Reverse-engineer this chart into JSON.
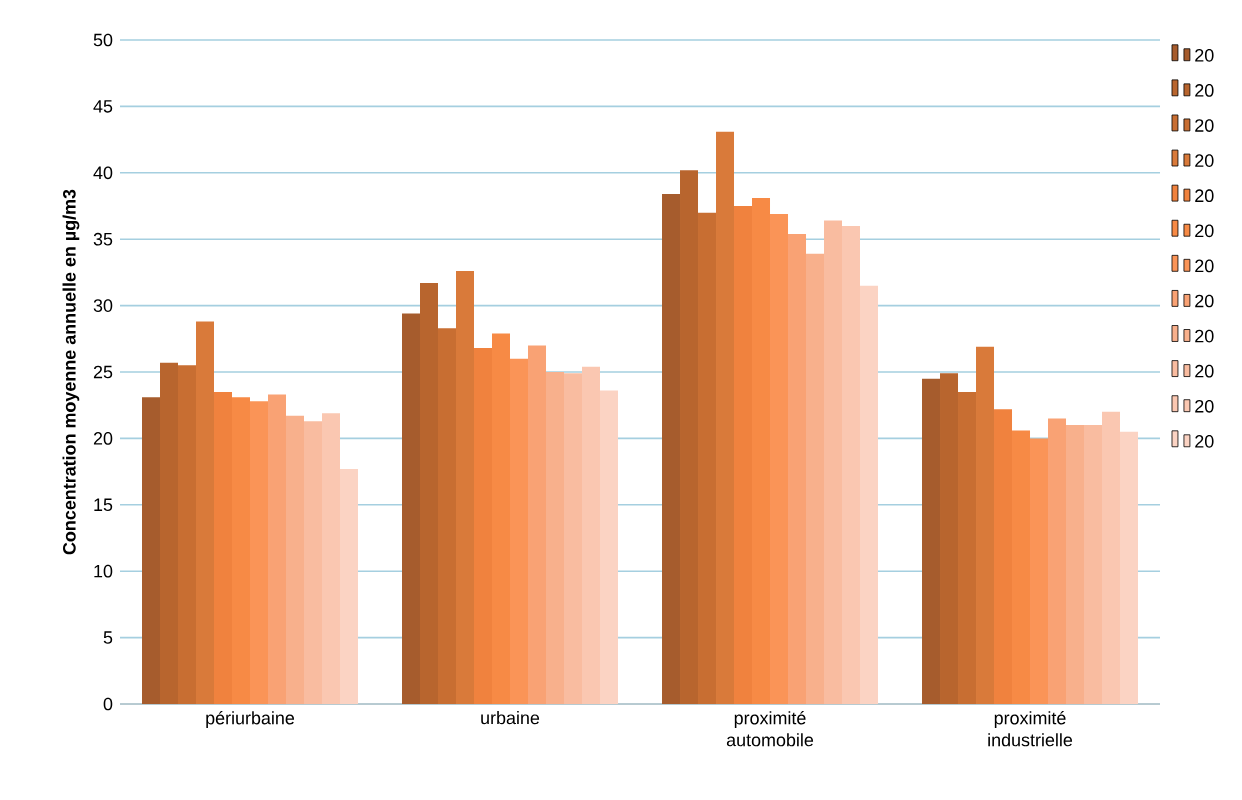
{
  "chart_data": {
    "type": "bar",
    "ylabel": "Concentration moyenne annuelle en µg/m3",
    "categories": [
      "périurbaine",
      "urbaine",
      "proximité automobile",
      "proximité industrielle"
    ],
    "ylim": [
      0,
      50
    ],
    "yticks": [
      0,
      5,
      10,
      15,
      20,
      25,
      30,
      35,
      40,
      45,
      50
    ],
    "grid": "y",
    "legend": "right",
    "series": [
      {
        "name": "20",
        "color": "#a65c2d",
        "values": [
          23.1,
          29.4,
          38.4,
          24.5
        ]
      },
      {
        "name": "20",
        "color": "#b8652e",
        "values": [
          25.7,
          31.7,
          40.2,
          24.9
        ]
      },
      {
        "name": "20",
        "color": "#c86e32",
        "values": [
          25.5,
          28.3,
          37.0,
          23.5
        ]
      },
      {
        "name": "20",
        "color": "#d97a3a",
        "values": [
          28.8,
          32.6,
          43.1,
          26.9
        ]
      },
      {
        "name": "20",
        "color": "#f0823e",
        "values": [
          23.5,
          26.8,
          37.5,
          22.2
        ]
      },
      {
        "name": "20",
        "color": "#f78a45",
        "values": [
          23.1,
          27.9,
          38.1,
          20.6
        ]
      },
      {
        "name": "20",
        "color": "#fa9457",
        "values": [
          22.8,
          26.0,
          36.9,
          20.0
        ]
      },
      {
        "name": "20",
        "color": "#f9a274",
        "values": [
          23.3,
          27.0,
          35.4,
          21.5
        ]
      },
      {
        "name": "20",
        "color": "#f8b08c",
        "values": [
          21.7,
          25.0,
          33.9,
          21.0
        ]
      },
      {
        "name": "20",
        "color": "#f9bca0",
        "values": [
          21.3,
          24.9,
          36.4,
          21.0
        ]
      },
      {
        "name": "20",
        "color": "#fac7b1",
        "values": [
          21.9,
          25.4,
          36.0,
          22.0
        ]
      },
      {
        "name": "20",
        "color": "#fbd3c3",
        "values": [
          17.7,
          23.6,
          31.5,
          20.5
        ]
      }
    ]
  }
}
